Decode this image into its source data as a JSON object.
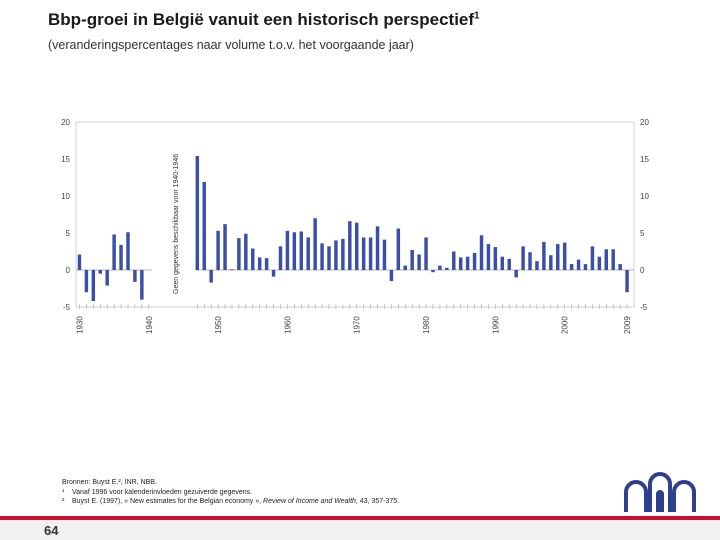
{
  "header": {
    "title": "Bbp-groei in België vanuit een historisch perspectief",
    "title_sup": "1",
    "subtitle": "(veranderingspercentages naar volume t.o.v. het voorgaande jaar)"
  },
  "chart_data": {
    "type": "bar",
    "title": "Bbp-groei in België vanuit een historisch perspectief",
    "ylabel": "",
    "xlabel": "",
    "ylim": [
      -5,
      20
    ],
    "yticks": [
      20,
      15,
      10,
      5,
      0,
      -5
    ],
    "ytick_labels": [
      "20",
      "15",
      "10",
      "5",
      "0",
      "-5"
    ],
    "grid": false,
    "bar_color": "#3a4fa8",
    "gap_label": "Geen gegevens beschikbaar voor 1940-1946",
    "gap_range": [
      1940,
      1946
    ],
    "x_ticks": [
      1930,
      1940,
      1950,
      1960,
      1970,
      1980,
      1990,
      2000,
      2009
    ],
    "x": [
      1930,
      1931,
      1932,
      1933,
      1934,
      1935,
      1936,
      1937,
      1938,
      1939,
      1940,
      1947,
      1948,
      1949,
      1950,
      1951,
      1952,
      1953,
      1954,
      1955,
      1956,
      1957,
      1958,
      1959,
      1960,
      1961,
      1962,
      1963,
      1964,
      1965,
      1966,
      1967,
      1968,
      1969,
      1970,
      1971,
      1972,
      1973,
      1974,
      1975,
      1976,
      1977,
      1978,
      1979,
      1980,
      1981,
      1982,
      1983,
      1984,
      1985,
      1986,
      1987,
      1988,
      1989,
      1990,
      1991,
      1992,
      1993,
      1994,
      1995,
      1996,
      1997,
      1998,
      1999,
      2000,
      2001,
      2002,
      2003,
      2004,
      2005,
      2006,
      2007,
      2008,
      2009
    ],
    "values": [
      2.1,
      -3.0,
      -4.2,
      -0.5,
      -2.1,
      4.8,
      3.4,
      5.1,
      -1.6,
      -4.0,
      0,
      15.4,
      11.9,
      -1.7,
      5.3,
      6.2,
      0.1,
      4.3,
      4.9,
      2.9,
      1.7,
      1.6,
      -0.9,
      3.2,
      5.3,
      5.1,
      5.2,
      4.4,
      7.0,
      3.6,
      3.2,
      4.0,
      4.2,
      6.6,
      6.4,
      4.4,
      4.4,
      5.9,
      4.1,
      -1.5,
      5.6,
      0.6,
      2.7,
      2.1,
      4.4,
      -0.3,
      0.6,
      0.3,
      2.5,
      1.7,
      1.8,
      2.3,
      4.7,
      3.5,
      3.1,
      1.8,
      1.5,
      -1.0,
      3.2,
      2.4,
      1.2,
      3.8,
      2.0,
      3.5,
      3.7,
      0.8,
      1.4,
      0.8,
      3.2,
      1.8,
      2.8,
      2.8,
      0.8,
      -3.0
    ]
  },
  "footnotes": {
    "sources": "Bronnen: Buyst E.², INR, NBB.",
    "note1_num": "¹",
    "note1": "Vanaf 1996 voor kalenderinvloeden gezuiverde gegevens.",
    "note2_num": "²",
    "note2_a": "Buyst E. (1997), « New estimates for the Belgian economy », ",
    "note2_em": "Review of Income and Wealth",
    "note2_b": ", 43, 357-375."
  },
  "page": {
    "number": "64"
  },
  "colors": {
    "accent": "#c8102e",
    "bars": "#3a4fa8",
    "logo": "#2e3f8f"
  }
}
